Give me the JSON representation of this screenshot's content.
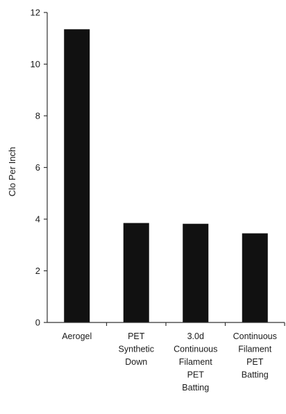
{
  "chart_data": {
    "type": "bar",
    "ylabel": "Clo Per Inch",
    "xlabel": "",
    "ylim": [
      0,
      12
    ],
    "yticks": [
      0,
      2,
      4,
      6,
      8,
      10,
      12
    ],
    "grid": false,
    "bar_color": "#111111",
    "categories": [
      [
        "Aerogel"
      ],
      [
        "PET",
        "Synthetic",
        "Down"
      ],
      [
        "3.0d",
        "Continuous",
        "Filament",
        "PET",
        "Batting"
      ],
      [
        "Continuous",
        "Filament",
        "PET",
        "Batting"
      ]
    ],
    "values": [
      11.35,
      3.85,
      3.82,
      3.45
    ]
  }
}
